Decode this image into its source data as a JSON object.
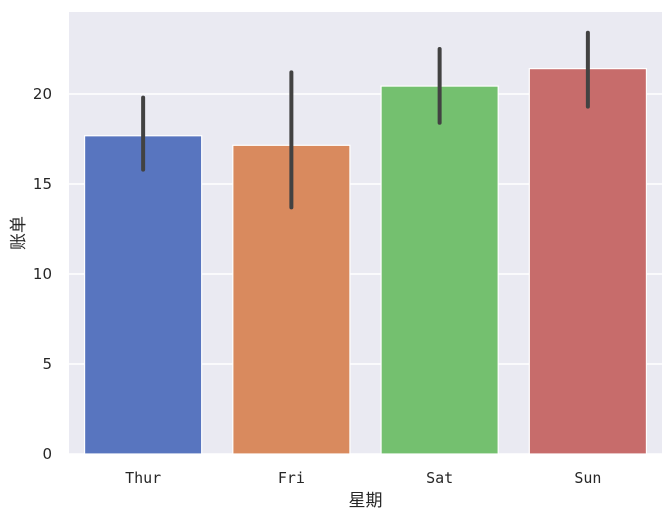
{
  "chart_data": {
    "type": "bar",
    "title": "",
    "xlabel": "星期",
    "ylabel": "账单",
    "categories": [
      "Thur",
      "Fri",
      "Sat",
      "Sun"
    ],
    "values": [
      17.68,
      17.15,
      20.44,
      21.41
    ],
    "error_bars": [
      {
        "low": 15.8,
        "high": 19.8
      },
      {
        "low": 13.7,
        "high": 21.2
      },
      {
        "low": 18.4,
        "high": 22.5
      },
      {
        "low": 19.3,
        "high": 23.4
      }
    ],
    "colors": [
      "#5875bf",
      "#d98a5e",
      "#74c06f",
      "#c76c6b"
    ],
    "error_color": "#424242",
    "ylim": [
      0,
      24.5
    ],
    "yticks": [
      0,
      5,
      10,
      15,
      20
    ],
    "grid": true,
    "background": "#eaeaf2",
    "legend": null
  }
}
